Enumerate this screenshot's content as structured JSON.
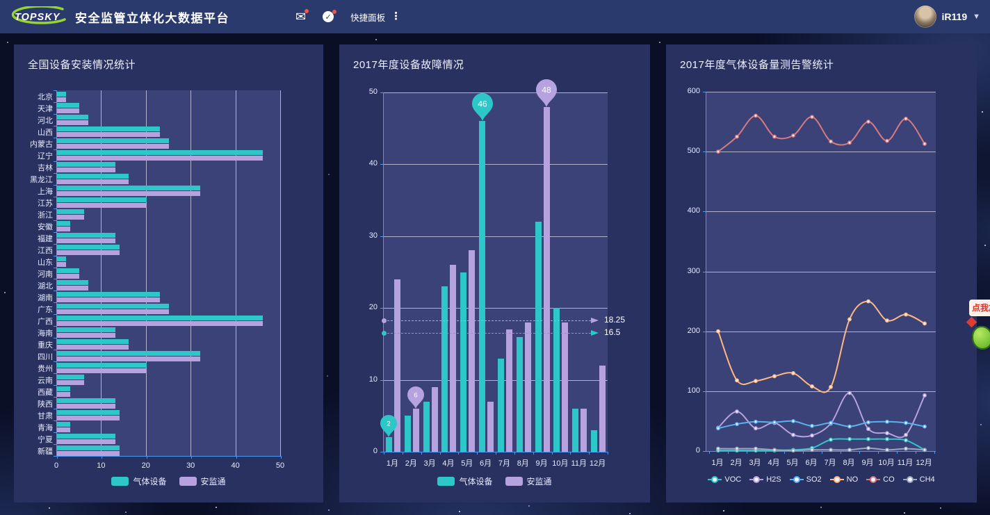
{
  "topbar": {
    "logo_text": "TOPSKY",
    "title": "安全监管立体化大数据平台",
    "quick_panel_label": "快捷面板",
    "username": "iR119",
    "icons": [
      "mail-icon",
      "check-circle-icon",
      "menu-dots-icon",
      "caret-down-icon"
    ]
  },
  "sticker": {
    "bubble_text": "点我加"
  },
  "colors": {
    "teal": "#2ec7c9",
    "purple": "#b6a2de",
    "blue": "#5ab1ef",
    "orange": "#ffb980",
    "salmon": "#d87a80",
    "gray": "#9aa6bd",
    "axis": "#4a9bf5",
    "panel": "#293160",
    "plot": "#3b4278",
    "topbar_bg": "#2b3a6d",
    "logo_green": "#96d42f",
    "badge_red": "#f0564a"
  },
  "chart_data": [
    {
      "type": "bar",
      "orientation": "horizontal",
      "title": "全国设备安装情况统计",
      "categories": [
        "北京",
        "天津",
        "河北",
        "山西",
        "内蒙古",
        "辽宁",
        "吉林",
        "黑龙江",
        "上海",
        "江苏",
        "浙江",
        "安徽",
        "福建",
        "江西",
        "山东",
        "河南",
        "湖北",
        "湖南",
        "广东",
        "广西",
        "海南",
        "重庆",
        "四川",
        "贵州",
        "云南",
        "西藏",
        "陕西",
        "甘肃",
        "青海",
        "宁夏",
        "新疆"
      ],
      "series": [
        {
          "name": "气体设备",
          "color_key": "teal",
          "values": [
            2,
            5,
            7,
            23,
            25,
            46,
            13,
            16,
            32,
            20,
            6,
            3,
            13,
            14,
            2,
            5,
            7,
            23,
            25,
            46,
            13,
            16,
            32,
            20,
            6,
            3,
            13,
            14,
            3,
            13,
            14
          ]
        },
        {
          "name": "安监通",
          "color_key": "purple",
          "values": [
            2,
            5,
            7,
            23,
            25,
            46,
            13,
            16,
            32,
            20,
            6,
            3,
            13,
            14,
            2,
            5,
            7,
            23,
            25,
            46,
            13,
            16,
            32,
            20,
            6,
            3,
            13,
            14,
            3,
            13,
            14
          ]
        }
      ],
      "xlim": [
        0,
        50
      ],
      "xticks": [
        0,
        10,
        20,
        30,
        40,
        50
      ],
      "grid": true,
      "legend_position": "bottom"
    },
    {
      "type": "bar",
      "orientation": "vertical",
      "title": "2017年度设备故障情况",
      "categories": [
        "1月",
        "2月",
        "3月",
        "4月",
        "5月",
        "6月",
        "7月",
        "8月",
        "9月",
        "10月",
        "11月",
        "12月"
      ],
      "series": [
        {
          "name": "气体设备",
          "color_key": "teal",
          "values": [
            2,
            5,
            7,
            23,
            25,
            46,
            13,
            16,
            32,
            20,
            6,
            3
          ]
        },
        {
          "name": "安监通",
          "color_key": "purple",
          "values": [
            24,
            6,
            9,
            26,
            28,
            7,
            17,
            18,
            48,
            18,
            6,
            12
          ]
        }
      ],
      "ylim": [
        0,
        50
      ],
      "yticks": [
        0,
        10,
        20,
        30,
        40,
        50
      ],
      "grid": true,
      "legend_position": "bottom",
      "marklines": [
        {
          "series": "安监通",
          "color_key": "purple",
          "value": 18.25,
          "label": "18.25"
        },
        {
          "series": "气体设备",
          "color_key": "teal",
          "value": 16.5,
          "label": "16.5"
        }
      ],
      "markpoints": [
        {
          "series": "气体设备",
          "color_key": "teal",
          "month": "1月",
          "value": 2,
          "size": "small"
        },
        {
          "series": "安监通",
          "color_key": "purple",
          "month": "2月",
          "value": 6,
          "size": "small"
        },
        {
          "series": "气体设备",
          "color_key": "teal",
          "month": "6月",
          "value": 46,
          "size": "large"
        },
        {
          "series": "安监通",
          "color_key": "purple",
          "month": "9月",
          "value": 48,
          "size": "large"
        }
      ]
    },
    {
      "type": "line",
      "title": "2017年度气体设备量测告警统计",
      "categories": [
        "1月",
        "2月",
        "3月",
        "4月",
        "5月",
        "6月",
        "7月",
        "8月",
        "9月",
        "10月",
        "11月",
        "12月"
      ],
      "series": [
        {
          "name": "VOC",
          "color_key": "teal",
          "values": [
            1,
            1,
            1,
            1,
            2,
            5,
            19,
            20,
            20,
            20,
            18,
            2
          ]
        },
        {
          "name": "H2S",
          "color_key": "purple",
          "values": [
            39,
            66,
            38,
            47,
            27,
            26,
            46,
            97,
            37,
            30,
            27,
            93
          ]
        },
        {
          "name": "SO2",
          "color_key": "blue",
          "values": [
            38,
            45,
            49,
            48,
            50,
            42,
            47,
            41,
            48,
            49,
            47,
            41
          ]
        },
        {
          "name": "NO",
          "color_key": "orange",
          "values": [
            200,
            118,
            117,
            125,
            130,
            108,
            107,
            220,
            250,
            218,
            228,
            213
          ]
        },
        {
          "name": "CO",
          "color_key": "salmon",
          "values": [
            500,
            525,
            560,
            525,
            527,
            558,
            517,
            515,
            550,
            518,
            555,
            513
          ]
        },
        {
          "name": "CH4",
          "color_key": "gray",
          "values": [
            4,
            4,
            4,
            2,
            1,
            2,
            2,
            2,
            5,
            2,
            4,
            2
          ]
        }
      ],
      "ylim": [
        0,
        600
      ],
      "yticks": [
        0,
        100,
        200,
        300,
        400,
        500,
        600
      ],
      "grid": true,
      "legend_position": "bottom"
    }
  ]
}
